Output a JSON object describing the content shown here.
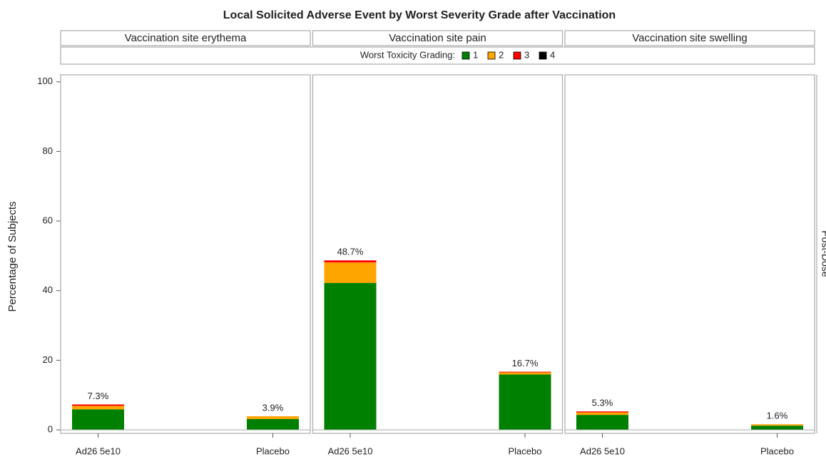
{
  "chart_data": {
    "type": "bar",
    "stacked": true,
    "title": "Local Solicited Adverse Event by Worst Severity Grade after Vaccination",
    "y_label": "Percentage of Subjects",
    "row_label": "Post-Dose",
    "legend_title": "Worst Toxicity Grading:",
    "grades": [
      {
        "name": "1",
        "color": "#008000"
      },
      {
        "name": "2",
        "color": "#FFA500"
      },
      {
        "name": "3",
        "color": "#FF0000"
      },
      {
        "name": "4",
        "color": "#000000"
      }
    ],
    "ylim": [
      -1,
      102
    ],
    "yticks": [
      0,
      20,
      40,
      60,
      80,
      100
    ],
    "panels": [
      {
        "title": "Vaccination site erythema",
        "categories": [
          "Ad26 5e10",
          "Placebo"
        ],
        "series": [
          {
            "values": [
              5.9,
              3.1
            ]
          },
          {
            "values": [
              1.0,
              0.8
            ]
          },
          {
            "values": [
              0.4,
              0
            ]
          },
          {
            "values": [
              0,
              0
            ]
          }
        ],
        "totals": [
          7.3,
          3.9
        ],
        "total_labels": [
          "7.3%",
          "3.9%"
        ]
      },
      {
        "title": "Vaccination site pain",
        "categories": [
          "Ad26 5e10",
          "Placebo"
        ],
        "series": [
          {
            "values": [
              42.2,
              15.9
            ]
          },
          {
            "values": [
              5.9,
              0.6
            ]
          },
          {
            "values": [
              0.6,
              0.2
            ]
          },
          {
            "values": [
              0,
              0
            ]
          }
        ],
        "totals": [
          48.7,
          16.7
        ],
        "total_labels": [
          "48.7%",
          "16.7%"
        ]
      },
      {
        "title": "Vaccination site swelling",
        "categories": [
          "Ad26 5e10",
          "Placebo"
        ],
        "series": [
          {
            "values": [
              4.3,
              1.2
            ]
          },
          {
            "values": [
              0.7,
              0.4
            ]
          },
          {
            "values": [
              0.3,
              0
            ]
          },
          {
            "values": [
              0,
              0
            ]
          }
        ],
        "totals": [
          5.3,
          1.6
        ],
        "total_labels": [
          "5.3%",
          "1.6%"
        ]
      }
    ]
  }
}
